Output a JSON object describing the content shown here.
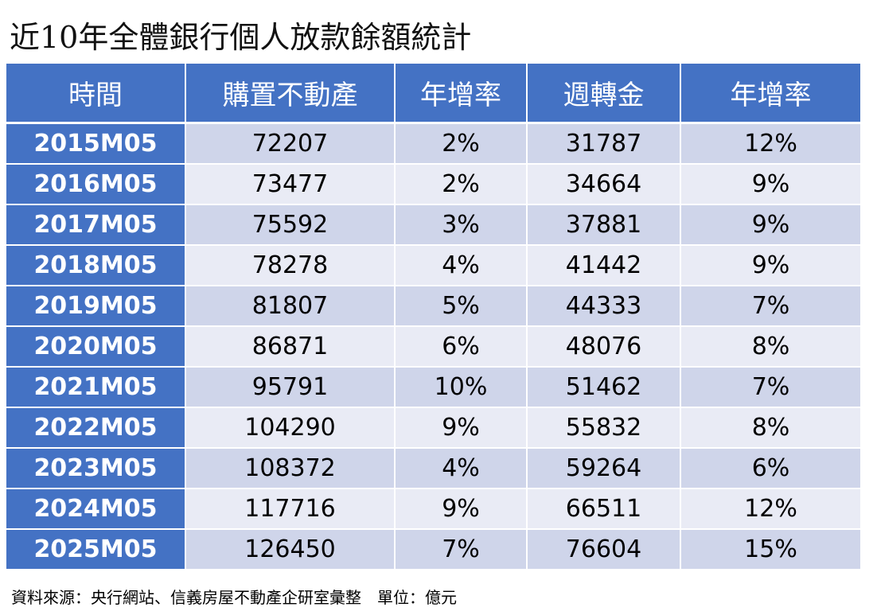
{
  "title": "近10年全體銀行個人放款餘額統計",
  "headers": [
    "時間",
    "購置不動產",
    "年增率",
    "週轉金",
    "年增率"
  ],
  "rows": [
    [
      "2015M05",
      "72207",
      "2%",
      "31787",
      "12%"
    ],
    [
      "2016M05",
      "73477",
      "2%",
      "34664",
      "9%"
    ],
    [
      "2017M05",
      "75592",
      "3%",
      "37881",
      "9%"
    ],
    [
      "2018M05",
      "78278",
      "4%",
      "41442",
      "9%"
    ],
    [
      "2019M05",
      "81807",
      "5%",
      "44333",
      "7%"
    ],
    [
      "2020M05",
      "86871",
      "6%",
      "48076",
      "8%"
    ],
    [
      "2021M05",
      "95791",
      "10%",
      "51462",
      "7%"
    ],
    [
      "2022M05",
      "104290",
      "9%",
      "55832",
      "8%"
    ],
    [
      "2023M05",
      "108372",
      "4%",
      "59264",
      "6%"
    ],
    [
      "2024M05",
      "117716",
      "9%",
      "66511",
      "12%"
    ],
    [
      "2025M05",
      "126450",
      "7%",
      "76604",
      "15%"
    ]
  ],
  "footer": "資料來源：央行網站、信義房屋不動產企研室彙整　單位：億元",
  "colors": {
    "header_blue": "#4472C4",
    "band_dark": "#CFD5EA",
    "band_light": "#E9EBF5"
  }
}
